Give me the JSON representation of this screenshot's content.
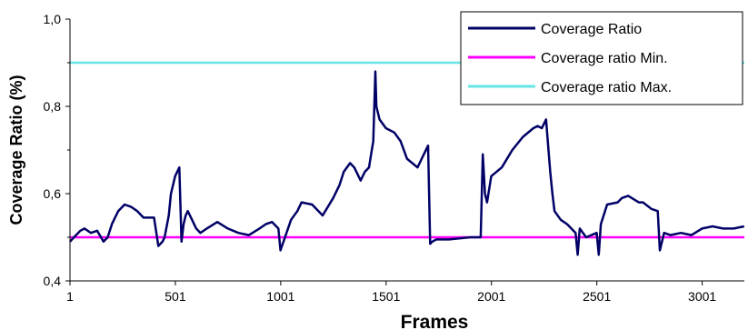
{
  "chart_data": {
    "type": "line",
    "title": "",
    "xlabel": "Frames",
    "ylabel": "Coverage Ratio (%)",
    "xlim": [
      1,
      3201
    ],
    "ylim": [
      0.4,
      1.0
    ],
    "x_ticks": [
      {
        "value": 1,
        "label": "1"
      },
      {
        "value": 501,
        "label": "501"
      },
      {
        "value": 1001,
        "label": "1001"
      },
      {
        "value": 1501,
        "label": "1501"
      },
      {
        "value": 2001,
        "label": "2001"
      },
      {
        "value": 2501,
        "label": "2501"
      },
      {
        "value": 3001,
        "label": "3001"
      }
    ],
    "y_ticks": [
      {
        "value": 0.4,
        "label": "0,4"
      },
      {
        "value": 0.6,
        "label": "0,6"
      },
      {
        "value": 0.8,
        "label": "0,8"
      },
      {
        "value": 1.0,
        "label": "1,0"
      }
    ],
    "grid": false,
    "legend_position": "top-right",
    "series": [
      {
        "name": "Coverage Ratio",
        "color": "#000066",
        "x": [
          1,
          20,
          50,
          70,
          100,
          130,
          160,
          180,
          200,
          230,
          260,
          290,
          320,
          350,
          400,
          420,
          440,
          450,
          470,
          480,
          490,
          500,
          520,
          530,
          540,
          550,
          560,
          580,
          600,
          620,
          650,
          700,
          750,
          800,
          850,
          900,
          930,
          960,
          990,
          1000,
          1050,
          1080,
          1100,
          1150,
          1180,
          1200,
          1250,
          1280,
          1300,
          1330,
          1350,
          1380,
          1400,
          1420,
          1430,
          1440,
          1450,
          1455,
          1470,
          1500,
          1540,
          1570,
          1600,
          1650,
          1680,
          1700,
          1710,
          1720,
          1740,
          1800,
          1900,
          1950,
          1960,
          1970,
          1980,
          2000,
          2050,
          2100,
          2150,
          2200,
          2220,
          2240,
          2260,
          2280,
          2290,
          2300,
          2330,
          2360,
          2400,
          2410,
          2420,
          2450,
          2500,
          2510,
          2520,
          2550,
          2600,
          2620,
          2650,
          2700,
          2720,
          2760,
          2790,
          2800,
          2820,
          2850,
          2900,
          2950,
          3000,
          3050,
          3100,
          3150,
          3200
        ],
        "y": [
          0.49,
          0.5,
          0.515,
          0.52,
          0.51,
          0.515,
          0.49,
          0.5,
          0.53,
          0.56,
          0.575,
          0.57,
          0.56,
          0.545,
          0.545,
          0.48,
          0.49,
          0.5,
          0.55,
          0.6,
          0.62,
          0.64,
          0.66,
          0.49,
          0.53,
          0.55,
          0.56,
          0.54,
          0.52,
          0.51,
          0.52,
          0.535,
          0.52,
          0.51,
          0.505,
          0.52,
          0.53,
          0.535,
          0.52,
          0.47,
          0.54,
          0.56,
          0.58,
          0.575,
          0.56,
          0.55,
          0.59,
          0.62,
          0.65,
          0.67,
          0.66,
          0.63,
          0.65,
          0.66,
          0.69,
          0.72,
          0.88,
          0.8,
          0.77,
          0.75,
          0.74,
          0.72,
          0.68,
          0.66,
          0.69,
          0.71,
          0.485,
          0.49,
          0.495,
          0.495,
          0.5,
          0.5,
          0.69,
          0.6,
          0.58,
          0.64,
          0.66,
          0.7,
          0.73,
          0.75,
          0.755,
          0.75,
          0.77,
          0.65,
          0.6,
          0.56,
          0.54,
          0.53,
          0.51,
          0.46,
          0.52,
          0.5,
          0.51,
          0.46,
          0.53,
          0.575,
          0.58,
          0.59,
          0.595,
          0.58,
          0.58,
          0.565,
          0.56,
          0.47,
          0.51,
          0.505,
          0.51,
          0.505,
          0.52,
          0.525,
          0.52,
          0.52,
          0.525
        ]
      },
      {
        "name": "Coverage ratio Min.",
        "color": "#ff00ff",
        "x": [
          1,
          3201
        ],
        "y": [
          0.5,
          0.5
        ]
      },
      {
        "name": "Coverage ratio Max.",
        "color": "#66e6e6",
        "x": [
          1,
          3201
        ],
        "y": [
          0.9,
          0.9
        ]
      }
    ]
  }
}
